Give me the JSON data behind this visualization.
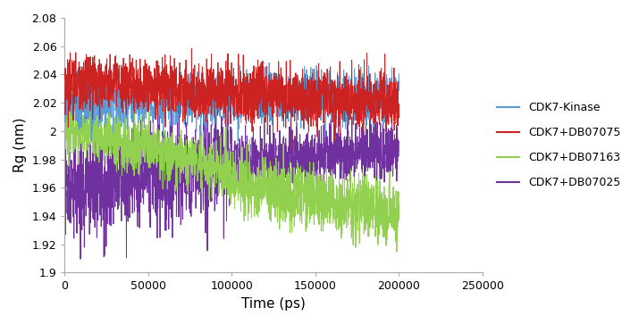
{
  "title": "",
  "xlabel": "Time (ps)",
  "ylabel": "Rg (nm)",
  "xlim": [
    0,
    250000
  ],
  "ylim": [
    1.9,
    2.08
  ],
  "yticks": [
    1.9,
    1.92,
    1.94,
    1.96,
    1.98,
    2.0,
    2.02,
    2.04,
    2.06,
    2.08
  ],
  "xticks": [
    0,
    50000,
    100000,
    150000,
    200000,
    250000
  ],
  "colors": {
    "CDK7-Kinase": "#5B9BD5",
    "CDK7+DB07075": "#CC2222",
    "CDK7+DB07163": "#92D050",
    "CDK7+DB07025": "#7030A0"
  },
  "legend_labels": [
    "CDK7-Kinase",
    "CDK7+DB07075",
    "CDK7+DB07163",
    "CDK7+DB07025"
  ],
  "n_points": 2000,
  "time_max": 200000,
  "seed": 42,
  "linewidth": 0.7,
  "figsize": [
    7.15,
    3.63
  ],
  "dpi": 100
}
